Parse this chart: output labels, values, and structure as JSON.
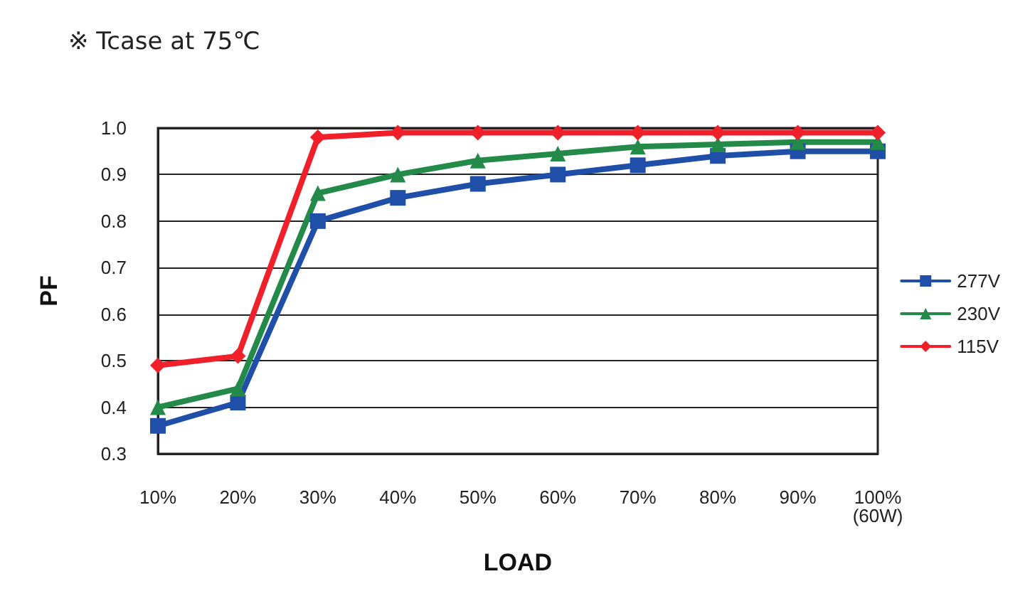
{
  "chart_data": {
    "type": "line",
    "title": "※ Tcase at 75℃",
    "xlabel": "LOAD",
    "ylabel": "PF",
    "categories": [
      "10%",
      "20%",
      "30%",
      "40%",
      "50%",
      "60%",
      "70%",
      "80%",
      "90%",
      "100%\n(60W)"
    ],
    "ylim": [
      0.3,
      1.0
    ],
    "yticks": [
      0.3,
      0.4,
      0.5,
      0.6,
      0.7,
      0.8,
      0.9,
      {
        "value": 1.0,
        "label": "1.0"
      }
    ],
    "grid": "y",
    "legend": "right",
    "line_style": "solid",
    "series": [
      {
        "name": "277V",
        "color": "#1f4fa8",
        "marker": "square",
        "values": [
          0.36,
          0.41,
          0.8,
          0.85,
          0.88,
          0.9,
          0.92,
          0.94,
          0.95,
          0.95
        ]
      },
      {
        "name": "230V",
        "color": "#238a4a",
        "marker": "triangle",
        "values": [
          0.4,
          0.44,
          0.86,
          0.9,
          0.93,
          0.945,
          0.96,
          0.965,
          0.97,
          0.97
        ]
      },
      {
        "name": "115V",
        "color": "#f0202a",
        "marker": "diamond",
        "values": [
          0.49,
          0.51,
          0.98,
          0.99,
          0.99,
          0.99,
          0.99,
          0.99,
          0.99,
          0.99
        ]
      }
    ]
  }
}
